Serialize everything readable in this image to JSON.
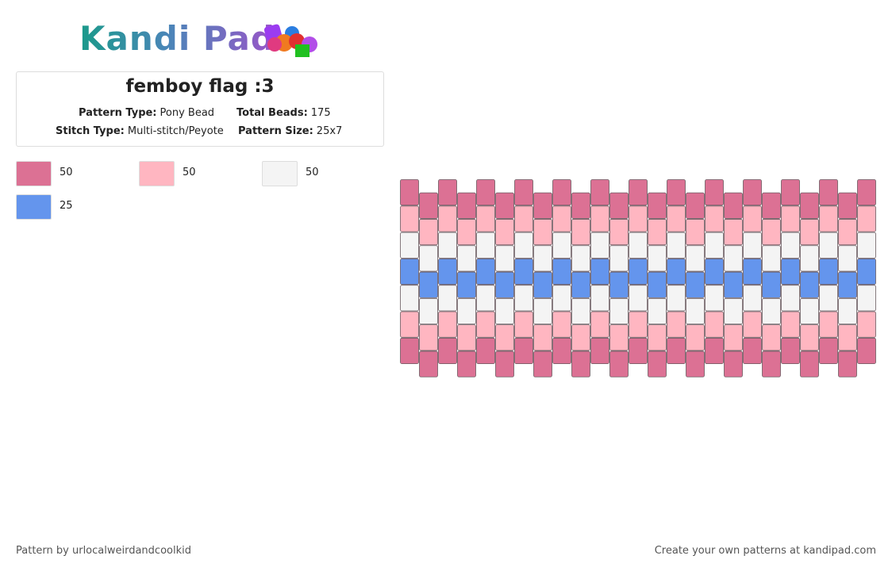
{
  "logo": "Kandi Pad",
  "title": "femboy flag :3",
  "info": [
    {
      "label": "Pattern Type:",
      "value": "Pony Bead"
    },
    {
      "label": "Total Beads:",
      "value": "175"
    },
    {
      "label": "Stitch Type:",
      "value": "Multi-stitch/Peyote"
    },
    {
      "label": "Pattern Size:",
      "value": "25x7"
    }
  ],
  "legend": [
    {
      "color": "#dc7194",
      "count": 50
    },
    {
      "color": "#ffb6c1",
      "count": 50
    },
    {
      "color": "#f4f4f4",
      "count": 50
    },
    {
      "color": "#6495ed",
      "count": 25
    }
  ],
  "pattern": {
    "columns": 25,
    "row_colors": [
      0,
      1,
      2,
      3,
      2,
      1,
      0
    ]
  },
  "footer": {
    "left": "Pattern by urlocalweirdandcoolkid",
    "right": "Create your own patterns at kandipad.com"
  }
}
